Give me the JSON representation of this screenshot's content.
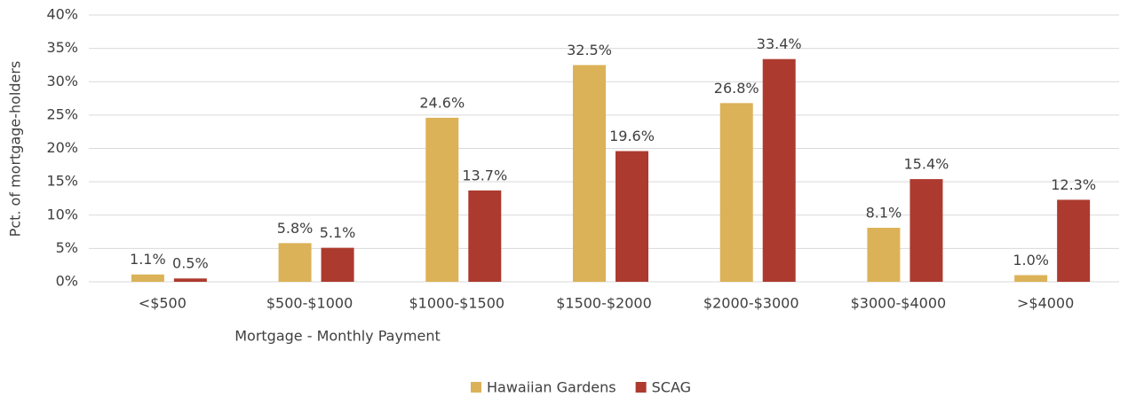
{
  "chart_data": {
    "type": "bar",
    "x_label": "Mortgage - Monthly Payment",
    "y_label": "Pct. of mortgage-holders",
    "categories": [
      "<$500",
      "$500-$1000",
      "$1000-$1500",
      "$1500-$2000",
      "$2000-$3000",
      "$3000-$4000",
      ">$4000"
    ],
    "series": [
      {
        "name": "Hawaiian Gardens",
        "color": "#dbb257",
        "values": [
          1.1,
          5.8,
          24.6,
          32.5,
          26.8,
          8.1,
          1.0
        ],
        "value_labels": [
          "1.1%",
          "5.8%",
          "24.6%",
          "32.5%",
          "26.8%",
          "8.1%",
          "1.0%"
        ]
      },
      {
        "name": "SCAG",
        "color": "#ad3a2f",
        "values": [
          0.5,
          5.1,
          13.7,
          19.6,
          33.4,
          15.4,
          12.3
        ],
        "value_labels": [
          "0.5%",
          "5.1%",
          "13.7%",
          "19.6%",
          "33.4%",
          "15.4%",
          "12.3%"
        ]
      }
    ],
    "ylim": [
      0,
      40
    ],
    "yticks": [
      {
        "value": 0,
        "label": "0%"
      },
      {
        "value": 5,
        "label": "5%"
      },
      {
        "value": 10,
        "label": "10%"
      },
      {
        "value": 15,
        "label": "15%"
      },
      {
        "value": 20,
        "label": "20%"
      },
      {
        "value": 25,
        "label": "25%"
      },
      {
        "value": 30,
        "label": "30%"
      },
      {
        "value": 35,
        "label": "35%"
      },
      {
        "value": 40,
        "label": "40%"
      }
    ],
    "grid": true,
    "legend": "bottom"
  }
}
